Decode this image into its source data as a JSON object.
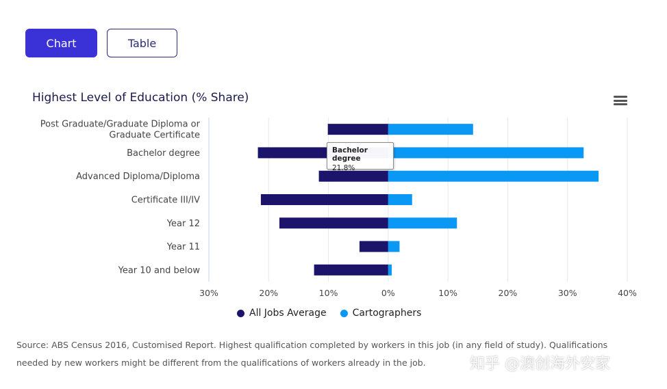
{
  "tabs": {
    "chart_label": "Chart",
    "table_label": "Table"
  },
  "menu_icon": "hamburger-menu-icon",
  "colors": {
    "all_jobs": "#1c146b",
    "cartographers": "#0a98f5",
    "active_tab": "#3a32d6"
  },
  "tooltip": {
    "title": "Bachelor degree",
    "value": "21.8%"
  },
  "source_text": "Source: ABS Census 2016, Customised Report. Highest qualification completed by workers in this job (in any field of study). Qualifications needed by new workers might be different from the qualifications of workers already in the job.",
  "watermark": "知乎 @澳创海外安家",
  "chart_data": {
    "type": "bar",
    "orientation": "horizontal",
    "title": "Highest Level of Education (% Share)",
    "categories": [
      [
        "Post Graduate/Graduate Diploma or",
        "Graduate Certificate"
      ],
      [
        "Bachelor degree"
      ],
      [
        "Advanced Diploma/Diploma"
      ],
      [
        "Certificate III/IV"
      ],
      [
        "Year 12"
      ],
      [
        "Year 11"
      ],
      [
        "Year 10 and below"
      ]
    ],
    "series": [
      {
        "name": "All Jobs Average",
        "direction": "left",
        "values": [
          10.1,
          21.8,
          11.6,
          21.3,
          18.2,
          4.8,
          12.4
        ]
      },
      {
        "name": "Cartographers",
        "direction": "right",
        "values": [
          14.2,
          32.7,
          35.2,
          4.0,
          11.5,
          1.9,
          0.6
        ]
      }
    ],
    "xlim": [
      -30,
      40
    ],
    "xticks": [
      -30,
      -20,
      -10,
      0,
      10,
      20,
      30,
      40
    ],
    "tick_labels": [
      "30%",
      "20%",
      "10%",
      "0%",
      "10%",
      "20%",
      "30%",
      "40%"
    ],
    "grid": true,
    "legend": "bottom-center"
  }
}
